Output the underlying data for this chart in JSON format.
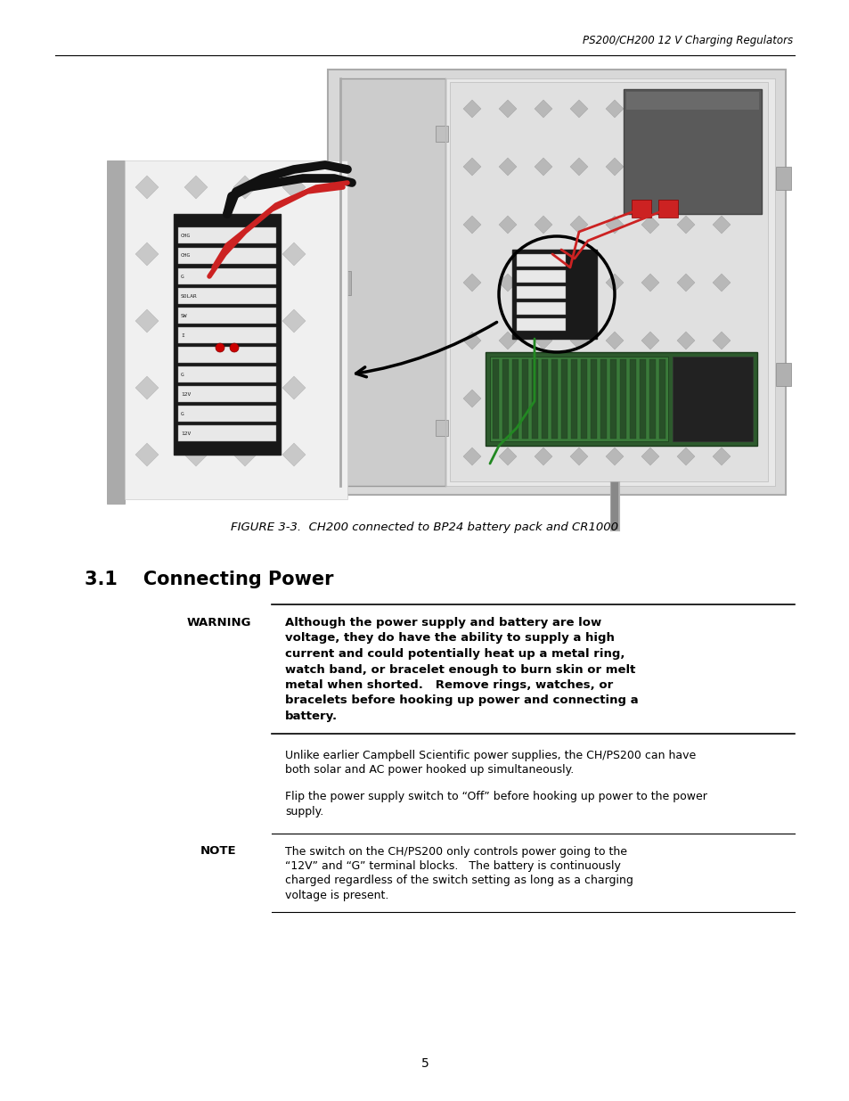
{
  "header_text": "PS200/CH200 12 V Charging Regulators",
  "figure_caption": "FIGURE 3-3.  CH200 connected to BP24 battery pack and CR1000",
  "section_title": "3.1    Connecting Power",
  "warning_label": "WARNING",
  "warning_lines": [
    "Although the power supply and battery are low",
    "voltage, they do have the ability to supply a high",
    "current and could potentially heat up a metal ring,",
    "watch band, or bracelet enough to burn skin or melt",
    "metal when shorted.   Remove rings, watches, or",
    "bracelets before hooking up power and connecting a",
    "battery."
  ],
  "para1_lines": [
    "Unlike earlier Campbell Scientific power supplies, the CH/PS200 can have",
    "both solar and AC power hooked up simultaneously."
  ],
  "para2_lines": [
    "Flip the power supply switch to “Off” before hooking up power to the power",
    "supply."
  ],
  "note_label": "NOTE",
  "note_lines": [
    "The switch on the CH/PS200 only controls power going to the",
    "“12V” and “G” terminal blocks.   The battery is continuously",
    "charged regardless of the switch setting as long as a charging",
    "voltage is present."
  ],
  "page_number": "5",
  "bg_color": "#ffffff",
  "text_color": "#000000"
}
